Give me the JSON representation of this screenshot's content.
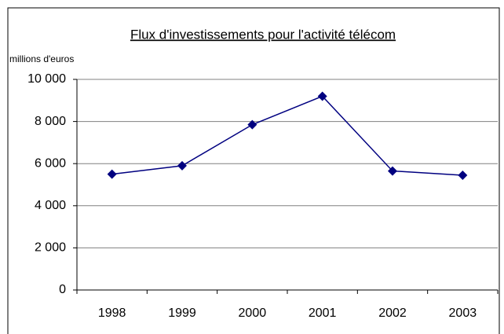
{
  "chart_data": {
    "type": "line",
    "title": "Flux d'investissements pour l'activité télécom",
    "y_label": "millions d'euros",
    "categories": [
      "1998",
      "1999",
      "2000",
      "2001",
      "2002",
      "2003"
    ],
    "series": [
      {
        "name": "Flux d'investissements",
        "color": "#000080",
        "values": [
          5500,
          5900,
          7850,
          9200,
          5650,
          5450
        ]
      }
    ],
    "ylim": [
      0,
      10000
    ],
    "yticks": [
      0,
      {
        "value": 2000,
        "label": "2 000"
      },
      {
        "value": 4000,
        "label": "4 000"
      },
      {
        "value": 6000,
        "label": "6 000"
      },
      {
        "value": 8000,
        "label": "8 000"
      },
      {
        "value": 10000,
        "label": "10 000"
      }
    ],
    "grid": true
  }
}
